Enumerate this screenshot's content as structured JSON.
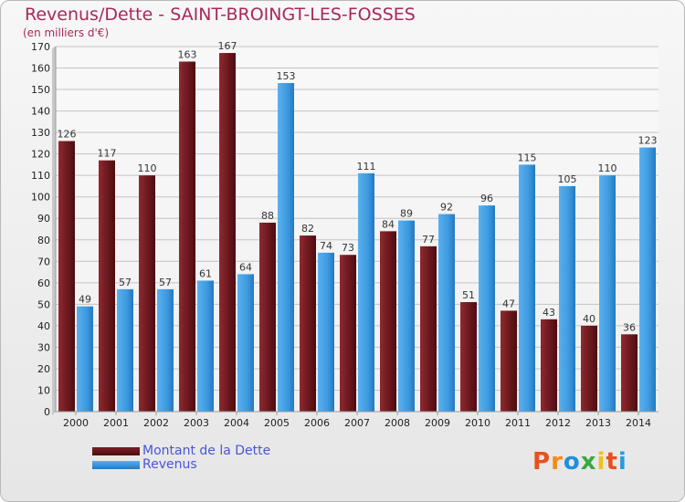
{
  "header": {
    "title": "Revenus/Dette - SAINT-BROINGT-LES-FOSSES",
    "subtitle": "(en milliers d'€)"
  },
  "legend": {
    "debt_label": "Montant de la Dette",
    "revenue_label": "Revenus"
  },
  "logo": {
    "text": "Proxiti"
  },
  "colors": {
    "debt": "#7a1f24",
    "revenue": "#3d9ae0",
    "title": "#a8285a",
    "legend_text": "#4a55d8",
    "logo_letters": [
      "#e8501c",
      "#f28c1c",
      "#1f8fd8",
      "#3aa845",
      "#f2c01c",
      "#e8501c",
      "#2f9ad8"
    ]
  },
  "chart_data": {
    "type": "bar",
    "categories": [
      "2000",
      "2001",
      "2002",
      "2003",
      "2004",
      "2005",
      "2006",
      "2007",
      "2008",
      "2009",
      "2010",
      "2011",
      "2012",
      "2013",
      "2014"
    ],
    "series": [
      {
        "name": "Montant de la Dette",
        "values": [
          126,
          117,
          110,
          163,
          167,
          88,
          82,
          73,
          84,
          77,
          51,
          47,
          43,
          40,
          36
        ]
      },
      {
        "name": "Revenus",
        "values": [
          49,
          57,
          57,
          61,
          64,
          153,
          74,
          111,
          89,
          92,
          96,
          115,
          105,
          110,
          123
        ]
      }
    ],
    "yticks": [
      0,
      10,
      20,
      30,
      40,
      50,
      60,
      70,
      80,
      90,
      100,
      110,
      120,
      130,
      140,
      150,
      160,
      170
    ],
    "ylim": [
      0,
      170
    ],
    "grid": true,
    "legend_position": "bottom-left"
  }
}
